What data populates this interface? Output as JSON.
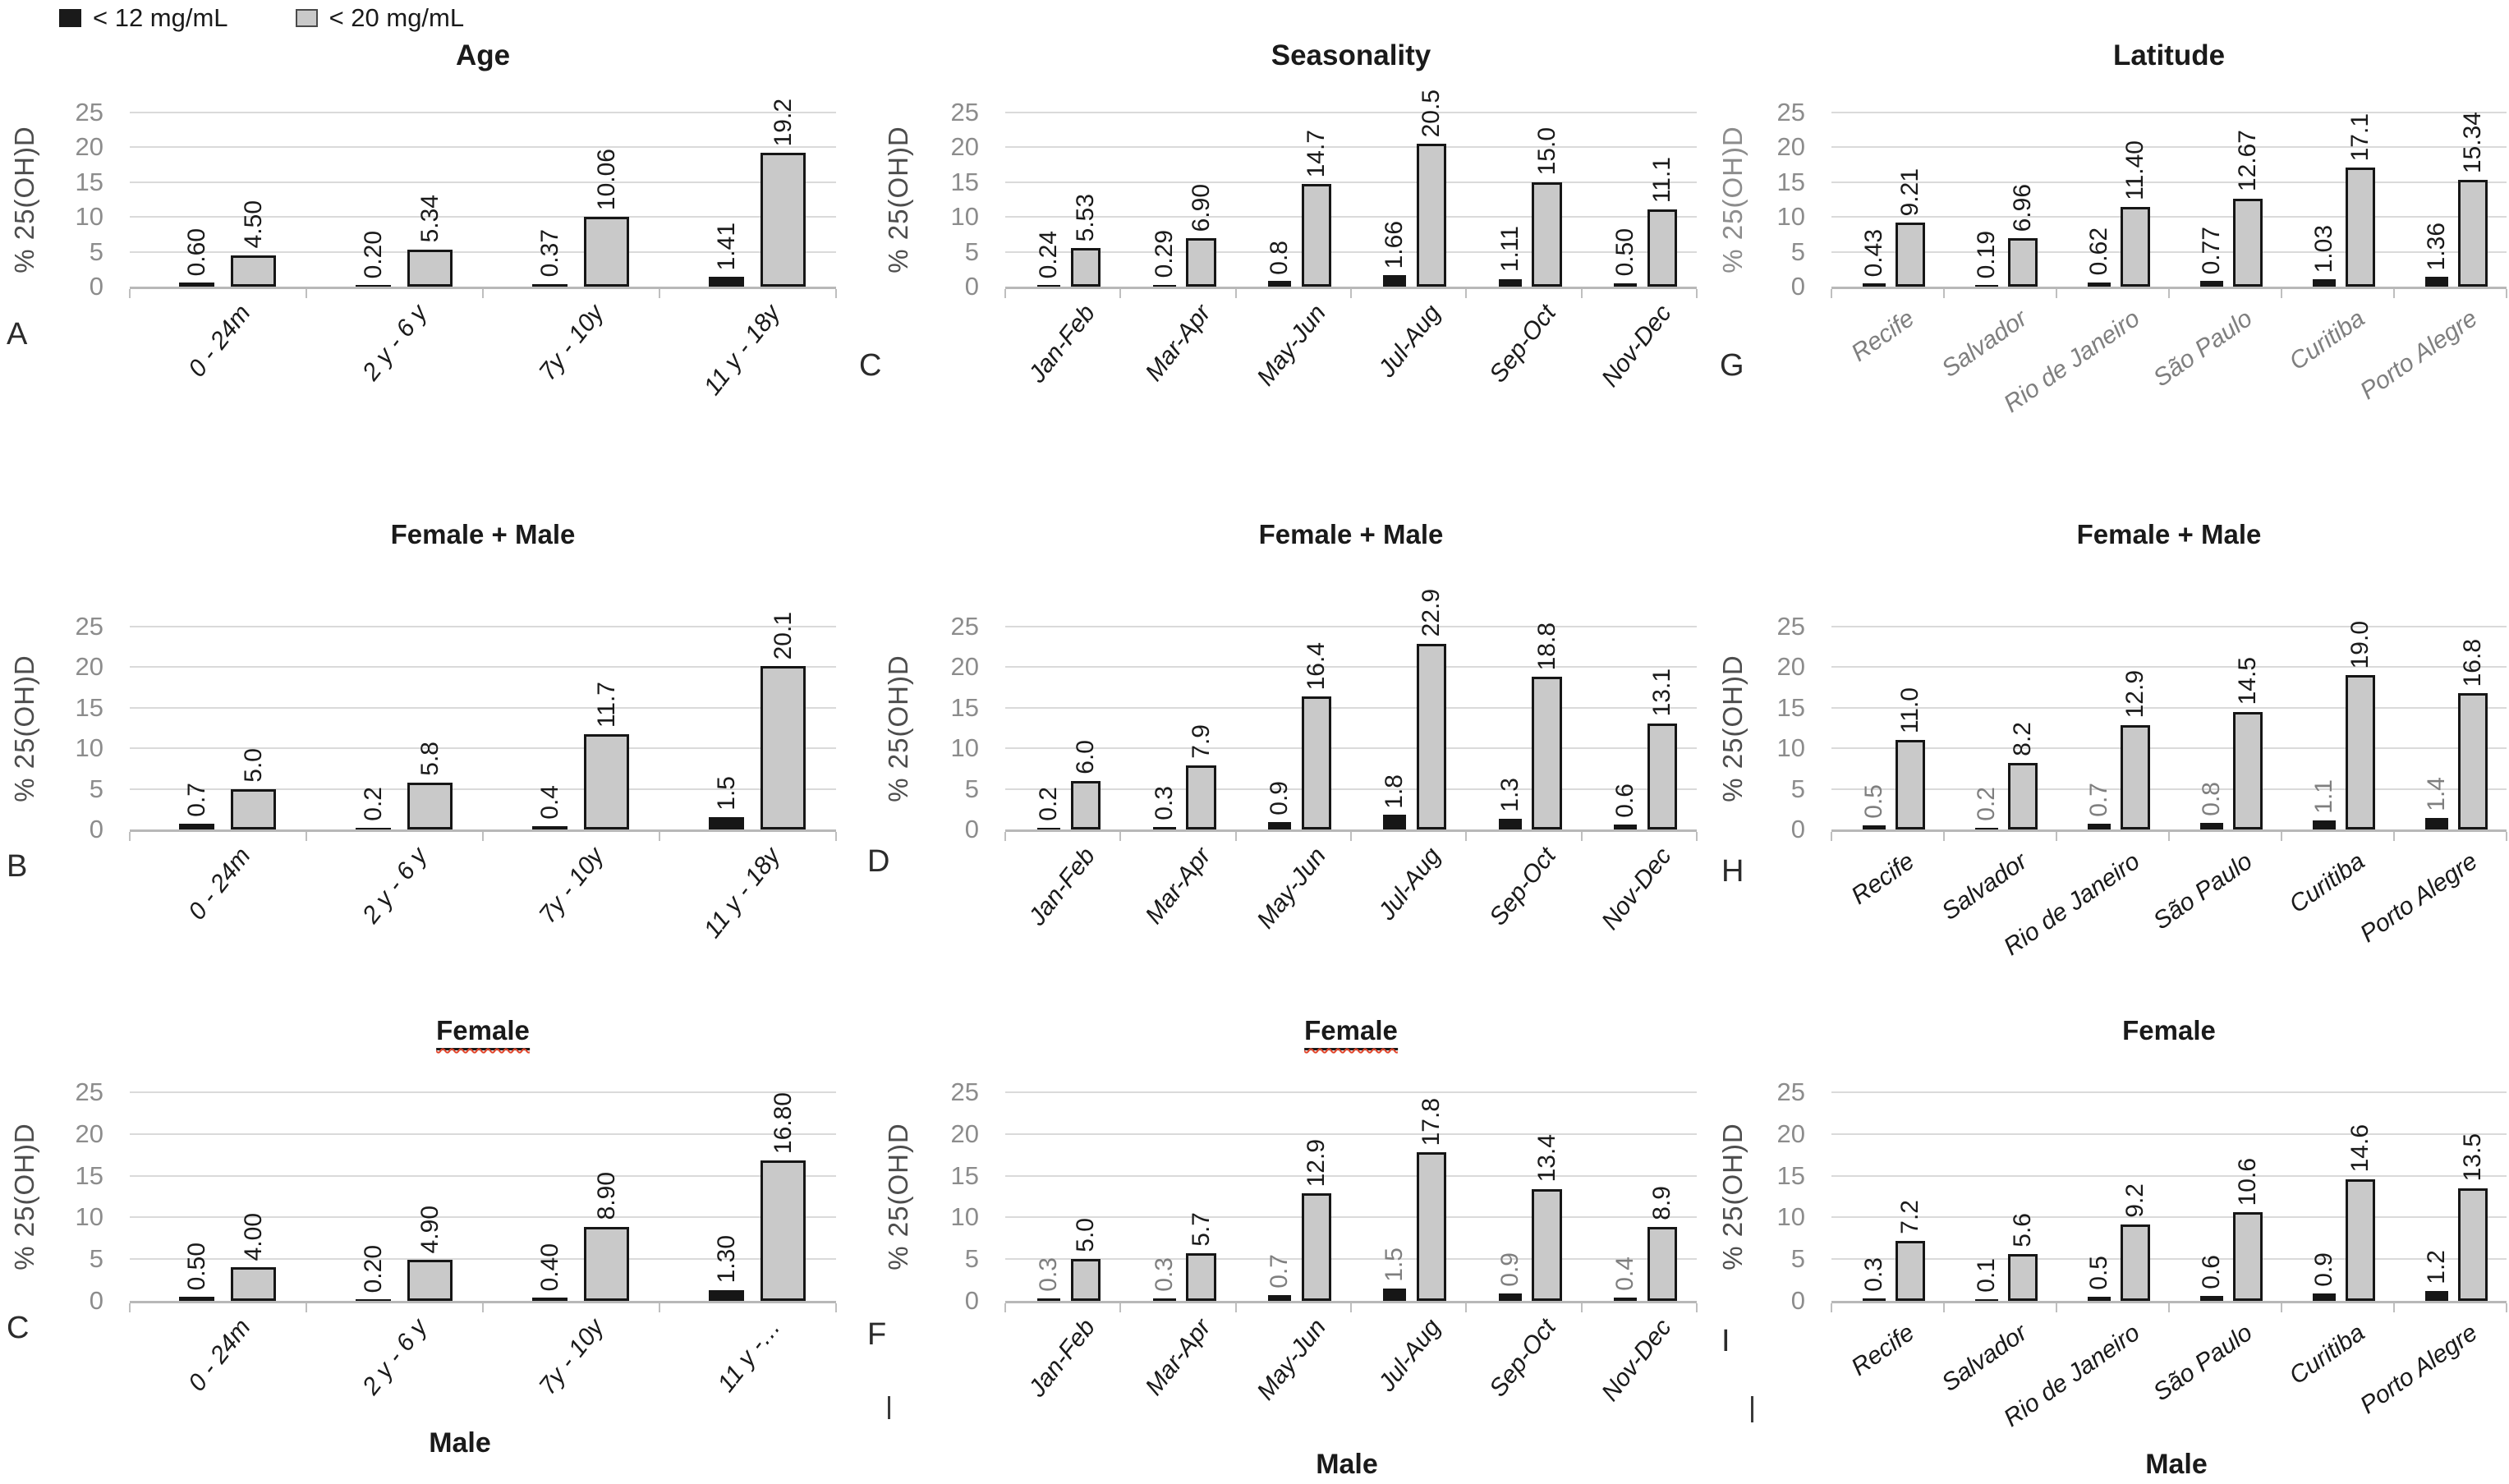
{
  "legend": {
    "items": [
      {
        "label": "< 12 mg/mL",
        "swatch": "black-square",
        "swatch_color": "#1a1a1a"
      },
      {
        "label": "< 20 mg/mL",
        "swatch": "gray-square",
        "swatch_color": "#c9c9c9"
      }
    ]
  },
  "y_axis": {
    "label": "% 25(OH)D",
    "ticks": [
      0,
      5,
      10,
      15,
      20,
      25
    ],
    "max": 25
  },
  "cropped_row_titles": [
    "Male",
    "Male",
    "Male"
  ],
  "chart_data": [
    {
      "type": "bar",
      "panel": "A",
      "row": 0,
      "col": 0,
      "title": "Age",
      "title_underlined": false,
      "ylabel": "% 25(OH)D",
      "ylim": [
        0,
        25
      ],
      "grid": true,
      "categories": [
        "0 - 24m",
        "2 y - 6 y",
        "7y - 10y",
        "11 y - 18y"
      ],
      "series": [
        {
          "name": "< 12 mg/mL",
          "color": "#161616",
          "values": [
            0.6,
            0.2,
            0.37,
            1.41
          ],
          "labels": [
            "0.60",
            "0.20",
            "0.37",
            "1.41"
          ],
          "label_color": "#1a1a1a"
        },
        {
          "name": "< 20 mg/mL",
          "color": "#c9c9c9",
          "values": [
            4.5,
            5.34,
            10.06,
            19.2
          ],
          "labels": [
            "4.50",
            "5.34",
            "10.06",
            "19.2"
          ],
          "label_color": "#1a1a1a"
        }
      ]
    },
    {
      "type": "bar",
      "panel": "C",
      "row": 0,
      "col": 1,
      "title": "Seasonality",
      "title_underlined": false,
      "ylabel": "% 25(OH)D",
      "ylim": [
        0,
        25
      ],
      "grid": true,
      "categories": [
        "Jan-Feb",
        "Mar-Apr",
        "May-Jun",
        "Jul-Aug",
        "Sep-Oct",
        "Nov-Dec"
      ],
      "series": [
        {
          "name": "< 12 mg/mL",
          "color": "#161616",
          "values": [
            0.24,
            0.29,
            0.8,
            1.66,
            1.11,
            0.5
          ],
          "labels": [
            "0.24",
            "0.29",
            "0.8",
            "1.66",
            "1.11",
            "0.50"
          ],
          "label_color": "#1a1a1a"
        },
        {
          "name": "< 20 mg/mL",
          "color": "#c9c9c9",
          "values": [
            5.53,
            6.9,
            14.7,
            20.5,
            15.0,
            11.1
          ],
          "labels": [
            "5.53",
            "6.90",
            "14.7",
            "20.5",
            "15.0",
            "11.1"
          ],
          "label_color": "#1a1a1a"
        }
      ]
    },
    {
      "type": "bar",
      "panel": "G",
      "row": 0,
      "col": 2,
      "title": "Latitude",
      "title_underlined": false,
      "ylabel": "% 25(OH)D",
      "ylabel_color": "#8c8c8c",
      "category_label_color": "#7f7f7f",
      "ylim": [
        0,
        25
      ],
      "grid": true,
      "categories": [
        "Recife",
        "Salvador",
        "Rio de Janeiro",
        "São Paulo",
        "Curitiba",
        "Porto Alegre"
      ],
      "series": [
        {
          "name": "< 12 mg/mL",
          "color": "#161616",
          "values": [
            0.43,
            0.19,
            0.62,
            0.77,
            1.03,
            1.36
          ],
          "labels": [
            "0.43",
            "0.19",
            "0.62",
            "0.77",
            "1.03",
            "1.36"
          ],
          "label_color": "#1a1a1a"
        },
        {
          "name": "< 20 mg/mL",
          "color": "#c9c9c9",
          "values": [
            9.21,
            6.96,
            11.4,
            12.67,
            17.1,
            15.34
          ],
          "labels": [
            "9.21",
            "6.96",
            "11.40",
            "12.67",
            "17.1",
            "15.34"
          ],
          "label_color": "#1a1a1a"
        }
      ]
    },
    {
      "type": "bar",
      "panel": "B",
      "row": 1,
      "col": 0,
      "title": "Female + Male",
      "title_underlined": false,
      "ylabel": "% 25(OH)D",
      "ylim": [
        0,
        25
      ],
      "grid": true,
      "categories": [
        "0 - 24m",
        "2 y - 6 y",
        "7y - 10y",
        "11 y - 18y"
      ],
      "series": [
        {
          "name": "< 12 mg/mL",
          "color": "#161616",
          "values": [
            0.7,
            0.2,
            0.4,
            1.5
          ],
          "labels": [
            "0.7",
            "0.2",
            "0.4",
            "1.5"
          ],
          "label_color": "#1a1a1a"
        },
        {
          "name": "< 20 mg/mL",
          "color": "#c9c9c9",
          "values": [
            5.0,
            5.8,
            11.7,
            20.1
          ],
          "labels": [
            "5.0",
            "5.8",
            "11.7",
            "20.1"
          ],
          "label_color": "#1a1a1a"
        }
      ]
    },
    {
      "type": "bar",
      "panel": "D",
      "row": 1,
      "col": 1,
      "title": "Female + Male",
      "title_underlined": false,
      "ylabel": "% 25(OH)D",
      "ylim": [
        0,
        25
      ],
      "grid": true,
      "categories": [
        "Jan-Feb",
        "Mar-Apr",
        "May-Jun",
        "Jul-Aug",
        "Sep-Oct",
        "Nov-Dec"
      ],
      "series": [
        {
          "name": "< 12 mg/mL",
          "color": "#161616",
          "values": [
            0.2,
            0.3,
            0.9,
            1.8,
            1.3,
            0.6
          ],
          "labels": [
            "0.2",
            "0.3",
            "0.9",
            "1.8",
            "1.3",
            "0.6"
          ],
          "label_color": "#1a1a1a"
        },
        {
          "name": "< 20 mg/mL",
          "color": "#c9c9c9",
          "values": [
            6.0,
            7.9,
            16.4,
            22.9,
            18.8,
            13.1
          ],
          "labels": [
            "6.0",
            "7.9",
            "16.4",
            "22.9",
            "18.8",
            "13.1"
          ],
          "label_color": "#1a1a1a"
        }
      ]
    },
    {
      "type": "bar",
      "panel": "H",
      "row": 1,
      "col": 2,
      "title": "Female + Male",
      "title_underlined": false,
      "ylabel": "% 25(OH)D",
      "ylim": [
        0,
        25
      ],
      "grid": true,
      "categories": [
        "Recife",
        "Salvador",
        "Rio de Janeiro",
        "São Paulo",
        "Curitiba",
        "Porto Alegre"
      ],
      "series": [
        {
          "name": "< 12 mg/mL",
          "color": "#161616",
          "values": [
            0.5,
            0.2,
            0.7,
            0.8,
            1.1,
            1.4
          ],
          "labels": [
            "0.5",
            "0.2",
            "0.7",
            "0.8",
            "1.1",
            "1.4"
          ],
          "label_color": "#7f7f7f"
        },
        {
          "name": "< 20 mg/mL",
          "color": "#c9c9c9",
          "values": [
            11.0,
            8.2,
            12.9,
            14.5,
            19.0,
            16.8
          ],
          "labels": [
            "11.0",
            "8.2",
            "12.9",
            "14.5",
            "19.0",
            "16.8"
          ],
          "label_color": "#1a1a1a"
        }
      ]
    },
    {
      "type": "bar",
      "panel": "C",
      "row": 2,
      "col": 0,
      "title": "Female",
      "title_underlined": true,
      "ylabel": "% 25(OH)D",
      "ylim": [
        0,
        25
      ],
      "grid": true,
      "categories": [
        "0 - 24m",
        "2 y - 6 y",
        "7y - 10y",
        "11 y -…"
      ],
      "series": [
        {
          "name": "< 12 mg/mL",
          "color": "#161616",
          "values": [
            0.5,
            0.2,
            0.4,
            1.3
          ],
          "labels": [
            "0.50",
            "0.20",
            "0.40",
            "1.30"
          ],
          "label_color": "#1a1a1a"
        },
        {
          "name": "< 20 mg/mL",
          "color": "#c9c9c9",
          "values": [
            4.0,
            4.9,
            8.9,
            16.8
          ],
          "labels": [
            "4.00",
            "4.90",
            "8.90",
            "16.80"
          ],
          "label_color": "#1a1a1a"
        }
      ]
    },
    {
      "type": "bar",
      "panel": "F",
      "row": 2,
      "col": 1,
      "title": "Female",
      "title_underlined": true,
      "ylabel": "% 25(OH)D",
      "ylim": [
        0,
        25
      ],
      "grid": true,
      "categories": [
        "Jan-Feb",
        "Mar-Apr",
        "May-Jun",
        "Jul-Aug",
        "Sep-Oct",
        "Nov-Dec"
      ],
      "series": [
        {
          "name": "< 12 mg/mL",
          "color": "#161616",
          "values": [
            0.3,
            0.3,
            0.7,
            1.5,
            0.9,
            0.4
          ],
          "labels": [
            "0.3",
            "0.3",
            "0.7",
            "1.5",
            "0.9",
            "0.4"
          ],
          "label_color": "#7f7f7f"
        },
        {
          "name": "< 20 mg/mL",
          "color": "#c9c9c9",
          "values": [
            5.0,
            5.7,
            12.9,
            17.8,
            13.4,
            8.9
          ],
          "labels": [
            "5.0",
            "5.7",
            "12.9",
            "17.8",
            "13.4",
            "8.9"
          ],
          "label_color": "#1a1a1a"
        }
      ]
    },
    {
      "type": "bar",
      "panel": "I",
      "row": 2,
      "col": 2,
      "title": "Female",
      "title_underlined": false,
      "ylabel": "% 25(OH)D",
      "ylim": [
        0,
        25
      ],
      "grid": true,
      "categories": [
        "Recife",
        "Salvador",
        "Rio de Janeiro",
        "São Paulo",
        "Curitiba",
        "Porto Alegre"
      ],
      "series": [
        {
          "name": "< 12 mg/mL",
          "color": "#161616",
          "values": [
            0.3,
            0.1,
            0.5,
            0.6,
            0.9,
            1.2
          ],
          "labels": [
            "0.3",
            "0.1",
            "0.5",
            "0.6",
            "0.9",
            "1.2"
          ],
          "label_color": "#1a1a1a"
        },
        {
          "name": "< 20 mg/mL",
          "color": "#c9c9c9",
          "values": [
            7.2,
            5.6,
            9.2,
            10.6,
            14.6,
            13.5
          ],
          "labels": [
            "7.2",
            "5.6",
            "9.2",
            "10.6",
            "14.6",
            "13.5"
          ],
          "label_color": "#1a1a1a"
        }
      ]
    }
  ]
}
